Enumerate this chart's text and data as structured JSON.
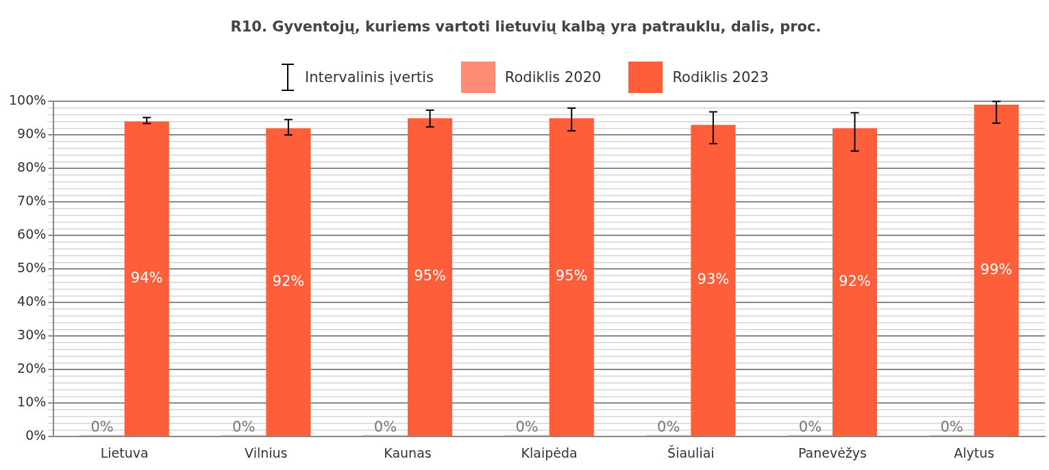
{
  "chart_data": {
    "type": "bar",
    "title": "R10. Gyventojų, kuriems vartoti lietuvių kalbą yra patrauklu, dalis, proc.",
    "categories": [
      "Lietuva",
      "Vilnius",
      "Kaunas",
      "Klaipėda",
      "Šiauliai",
      "Panevėžys",
      "Alytus"
    ],
    "series": [
      {
        "name": "Rodiklis 2020",
        "color": "#ff8a75",
        "values": [
          0,
          0,
          0,
          0,
          0,
          0,
          0
        ],
        "value_labels": [
          "0%",
          "0%",
          "0%",
          "0%",
          "0%",
          "0%",
          "0%"
        ]
      },
      {
        "name": "Rodiklis 2023",
        "color": "#ff5e3a",
        "values": [
          94,
          92,
          95,
          95,
          93,
          92,
          99
        ],
        "value_labels": [
          "94%",
          "92%",
          "95%",
          "95%",
          "93%",
          "92%",
          "99%"
        ],
        "errors": [
          [
            93.4,
            95.2
          ],
          [
            90.0,
            94.6
          ],
          [
            92.4,
            97.4
          ],
          [
            91.2,
            98.0
          ],
          [
            87.4,
            96.9
          ],
          [
            85.2,
            96.6
          ],
          [
            93.5,
            100
          ]
        ]
      }
    ],
    "annotations": [
      "Intervalinis įvertis"
    ],
    "ylim": [
      0,
      100
    ],
    "yticks": [
      {
        "value": 0,
        "label": "0%"
      },
      {
        "value": 2,
        "label": null
      },
      {
        "value": 4,
        "label": null
      },
      {
        "value": 6,
        "label": null
      },
      {
        "value": 8,
        "label": null
      },
      {
        "value": 10,
        "label": "10%"
      },
      {
        "value": 12,
        "label": null
      },
      {
        "value": 14,
        "label": null
      },
      {
        "value": 16,
        "label": null
      },
      {
        "value": 18,
        "label": null
      },
      {
        "value": 20,
        "label": "20%"
      },
      {
        "value": 22,
        "label": null
      },
      {
        "value": 24,
        "label": null
      },
      {
        "value": 26,
        "label": null
      },
      {
        "value": 28,
        "label": null
      },
      {
        "value": 30,
        "label": "30%"
      },
      {
        "value": 32,
        "label": null
      },
      {
        "value": 34,
        "label": null
      },
      {
        "value": 36,
        "label": null
      },
      {
        "value": 38,
        "label": null
      },
      {
        "value": 40,
        "label": "40%"
      },
      {
        "value": 42,
        "label": null
      },
      {
        "value": 44,
        "label": null
      },
      {
        "value": 46,
        "label": null
      },
      {
        "value": 48,
        "label": null
      },
      {
        "value": 50,
        "label": "50%"
      },
      {
        "value": 52,
        "label": null
      },
      {
        "value": 54,
        "label": null
      },
      {
        "value": 56,
        "label": null
      },
      {
        "value": 58,
        "label": null
      },
      {
        "value": 60,
        "label": "60%"
      },
      {
        "value": 62,
        "label": null
      },
      {
        "value": 64,
        "label": null
      },
      {
        "value": 66,
        "label": null
      },
      {
        "value": 68,
        "label": null
      },
      {
        "value": 70,
        "label": "70%"
      },
      {
        "value": 72,
        "label": null
      },
      {
        "value": 74,
        "label": null
      },
      {
        "value": 76,
        "label": null
      },
      {
        "value": 78,
        "label": null
      },
      {
        "value": 80,
        "label": "80%"
      },
      {
        "value": 82,
        "label": null
      },
      {
        "value": 84,
        "label": null
      },
      {
        "value": 86,
        "label": null
      },
      {
        "value": 88,
        "label": null
      },
      {
        "value": 90,
        "label": "90%"
      },
      {
        "value": 92,
        "label": null
      },
      {
        "value": 94,
        "label": null
      },
      {
        "value": 96,
        "label": null
      },
      {
        "value": 98,
        "label": null
      },
      {
        "value": 100,
        "label": "100%"
      }
    ],
    "grid": "y",
    "legend": "top"
  }
}
